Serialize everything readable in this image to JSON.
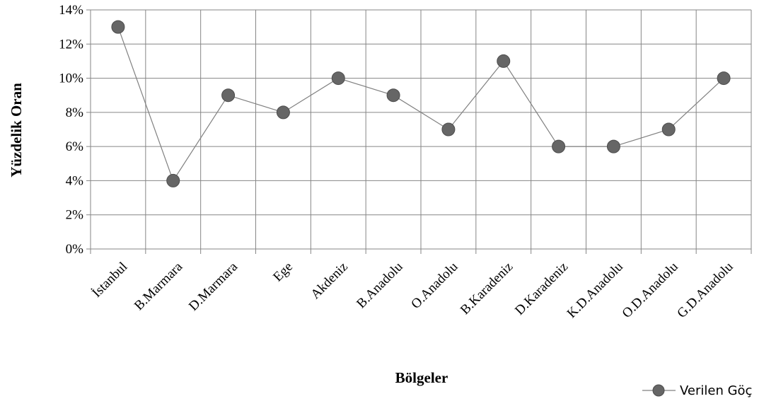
{
  "chart_data": {
    "type": "line",
    "categories": [
      "İstanbul",
      "B.Marmara",
      "D.Marmara",
      "Ege",
      "Akdeniz",
      "B.Anadolu",
      "O.Anadolu",
      "B.Karadeniz",
      "D.Karadeniz",
      "K.D.Anadolu",
      "O.D.Anadolu",
      "G.D.Anadolu"
    ],
    "series": [
      {
        "name": "Verilen Göç",
        "values": [
          13,
          4,
          9,
          8,
          10,
          9,
          7,
          11,
          6,
          6,
          7,
          10
        ]
      }
    ],
    "xlabel": "Bölgeler",
    "ylabel": "Yüzdelik Oran",
    "ylim": [
      0,
      14
    ],
    "yticks": [
      "0%",
      "2%",
      "4%",
      "6%",
      "8%",
      "10%",
      "12%",
      "14%"
    ],
    "grid": true,
    "legend_position": "bottom-right",
    "colors": {
      "line": "#808080",
      "marker": "#666666",
      "marker_stroke": "#4d4d4d",
      "grid": "#868686"
    }
  }
}
